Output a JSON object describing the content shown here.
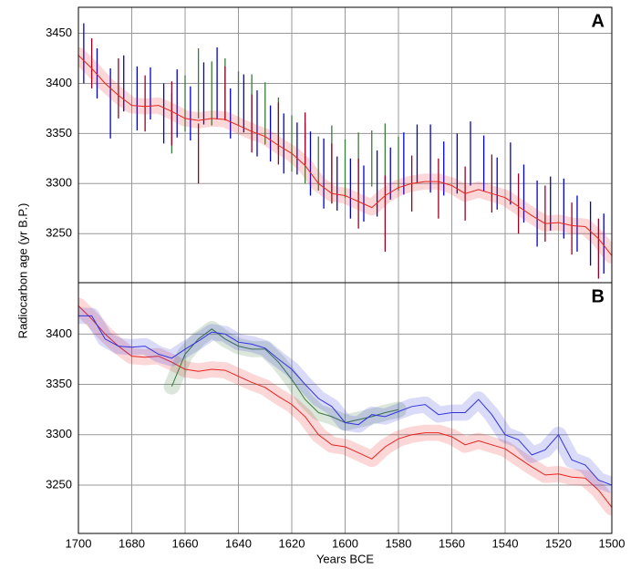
{
  "chart_data": [
    {
      "type": "errorbar",
      "panel_label": "A",
      "ylabel": "Radiocarbon age (yr B.P.)",
      "xlim": [
        1700,
        1500
      ],
      "ylim": [
        3201,
        3476
      ],
      "xticks": [
        1700,
        1680,
        1660,
        1640,
        1620,
        1600,
        1580,
        1560,
        1540,
        1520,
        1500
      ],
      "yticks": [
        3250,
        3300,
        3350,
        3400,
        3450
      ],
      "grid": true,
      "series": [
        {
          "color": "#0000cc",
          "x": [
            1698,
            1693,
            1688,
            1683,
            1678,
            1673,
            1668,
            1663,
            1658,
            1653,
            1648,
            1643,
            1638,
            1633,
            1628,
            1623,
            1618,
            1613,
            1608,
            1603,
            1598,
            1593,
            1588,
            1583,
            1578,
            1573,
            1568,
            1563,
            1558,
            1553,
            1548,
            1543,
            1538,
            1533,
            1528,
            1523,
            1518,
            1513,
            1508,
            1503
          ],
          "values": [
            3430,
            3410,
            3380,
            3400,
            3385,
            3390,
            3370,
            3380,
            3370,
            3390,
            3400,
            3370,
            3380,
            3360,
            3350,
            3340,
            3335,
            3320,
            3310,
            3300,
            3295,
            3290,
            3300,
            3310,
            3320,
            3330,
            3325,
            3315,
            3320,
            3330,
            3320,
            3300,
            3310,
            3290,
            3270,
            3280,
            3275,
            3260,
            3250,
            3240
          ],
          "errors": [
            30,
            25,
            35,
            28,
            32,
            26,
            30,
            34,
            27,
            31,
            36,
            25,
            29,
            33,
            28,
            30,
            26,
            32,
            35,
            27,
            30,
            28,
            33,
            26,
            31,
            29,
            34,
            27,
            30,
            32,
            28,
            26,
            31,
            29,
            33,
            27,
            30,
            28,
            32,
            30
          ]
        },
        {
          "color": "#3a7a3a",
          "x": [
            1665,
            1660,
            1655,
            1650,
            1645,
            1640,
            1635,
            1630,
            1625,
            1620,
            1615,
            1610,
            1605,
            1600,
            1595,
            1590,
            1585,
            1580
          ],
          "values": [
            3360,
            3380,
            3400,
            3390,
            3395,
            3385,
            3380,
            3370,
            3360,
            3340,
            3330,
            3320,
            3325,
            3315,
            3320,
            3325,
            3330,
            3320
          ],
          "errors": [
            30,
            28,
            35,
            32,
            30,
            27,
            29,
            31,
            26,
            28,
            30,
            27,
            33,
            29,
            31,
            28,
            30,
            27
          ]
        },
        {
          "color": "#990022",
          "x": [
            1695,
            1685,
            1675,
            1665,
            1655,
            1645,
            1635,
            1625,
            1615,
            1605,
            1595,
            1585,
            1575,
            1565,
            1555,
            1545,
            1535,
            1525,
            1515,
            1505
          ],
          "values": [
            3420,
            3395,
            3380,
            3370,
            3330,
            3390,
            3360,
            3350,
            3345,
            3310,
            3290,
            3270,
            3300,
            3295,
            3290,
            3300,
            3280,
            3270,
            3255,
            3235
          ],
          "errors": [
            25,
            30,
            28,
            32,
            30,
            27,
            29,
            31,
            26,
            30,
            35,
            38,
            28,
            30,
            27,
            29,
            30,
            28,
            26,
            30
          ]
        },
        {
          "color": "#e8231f",
          "band": 8,
          "x": [
            1700,
            1695,
            1690,
            1685,
            1680,
            1675,
            1670,
            1665,
            1660,
            1655,
            1650,
            1645,
            1640,
            1635,
            1630,
            1625,
            1620,
            1615,
            1610,
            1605,
            1600,
            1595,
            1590,
            1585,
            1580,
            1575,
            1570,
            1565,
            1560,
            1555,
            1550,
            1545,
            1540,
            1535,
            1530,
            1525,
            1520,
            1515,
            1510,
            1505,
            1500
          ],
          "values": [
            3428,
            3415,
            3400,
            3388,
            3378,
            3377,
            3378,
            3372,
            3365,
            3363,
            3365,
            3364,
            3358,
            3352,
            3347,
            3338,
            3330,
            3318,
            3300,
            3290,
            3288,
            3282,
            3276,
            3288,
            3296,
            3300,
            3302,
            3302,
            3298,
            3290,
            3294,
            3290,
            3286,
            3277,
            3268,
            3260,
            3261,
            3258,
            3257,
            3245,
            3228
          ]
        }
      ]
    },
    {
      "type": "line",
      "panel_label": "B",
      "xlabel": "Years BCE",
      "xlim": [
        1700,
        1500
      ],
      "ylim": [
        3202,
        3451
      ],
      "xticks": [
        1700,
        1680,
        1660,
        1640,
        1620,
        1600,
        1580,
        1560,
        1540,
        1520,
        1500
      ],
      "yticks": [
        3250,
        3300,
        3350,
        3400
      ],
      "grid": true,
      "series": [
        {
          "color": "#e8231f",
          "band": 8,
          "x": [
            1700,
            1695,
            1690,
            1685,
            1680,
            1675,
            1670,
            1665,
            1660,
            1655,
            1650,
            1645,
            1640,
            1635,
            1630,
            1625,
            1620,
            1615,
            1610,
            1605,
            1600,
            1595,
            1590,
            1585,
            1580,
            1575,
            1570,
            1565,
            1560,
            1555,
            1550,
            1545,
            1540,
            1535,
            1530,
            1525,
            1520,
            1515,
            1510,
            1505,
            1500
          ],
          "values": [
            3428,
            3415,
            3400,
            3388,
            3378,
            3377,
            3378,
            3372,
            3365,
            3363,
            3365,
            3364,
            3358,
            3352,
            3347,
            3338,
            3330,
            3318,
            3300,
            3290,
            3288,
            3282,
            3276,
            3288,
            3296,
            3300,
            3302,
            3302,
            3298,
            3290,
            3294,
            3290,
            3286,
            3277,
            3268,
            3260,
            3261,
            3258,
            3257,
            3245,
            3228
          ]
        },
        {
          "color": "#3a7a3a",
          "band": 8,
          "x": [
            1665,
            1660,
            1655,
            1650,
            1645,
            1640,
            1635,
            1630,
            1625,
            1620,
            1615,
            1610,
            1605,
            1600,
            1595,
            1590,
            1585,
            1580
          ],
          "values": [
            3348,
            3380,
            3395,
            3405,
            3395,
            3388,
            3385,
            3385,
            3372,
            3355,
            3335,
            3322,
            3318,
            3312,
            3315,
            3318,
            3322,
            3325
          ]
        },
        {
          "color": "#3333dd",
          "band": 8,
          "x": [
            1700,
            1695,
            1690,
            1685,
            1680,
            1675,
            1670,
            1665,
            1660,
            1655,
            1650,
            1645,
            1640,
            1635,
            1630,
            1625,
            1620,
            1615,
            1610,
            1605,
            1600,
            1595,
            1590,
            1585,
            1580,
            1575,
            1570,
            1565,
            1560,
            1555,
            1550,
            1545,
            1540,
            1535,
            1530,
            1525,
            1520,
            1515,
            1510,
            1505,
            1500
          ],
          "values": [
            3418,
            3418,
            3395,
            3388,
            3387,
            3388,
            3380,
            3376,
            3385,
            3393,
            3402,
            3400,
            3392,
            3390,
            3386,
            3375,
            3365,
            3350,
            3336,
            3328,
            3312,
            3310,
            3320,
            3318,
            3323,
            3328,
            3330,
            3320,
            3322,
            3322,
            3335,
            3320,
            3300,
            3295,
            3280,
            3285,
            3300,
            3275,
            3270,
            3255,
            3250
          ]
        }
      ]
    }
  ]
}
